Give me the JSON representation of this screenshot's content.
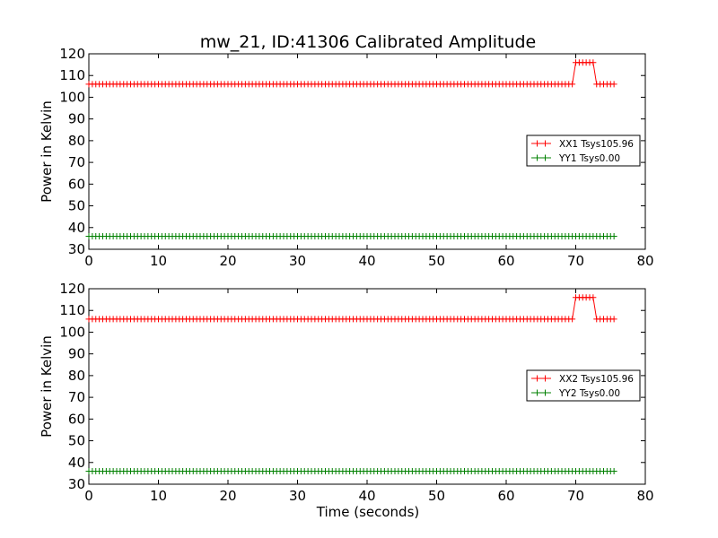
{
  "figure": {
    "title": "mw_21, ID:41306 Calibrated Amplitude",
    "xlabel": "Time (seconds)"
  },
  "chart_data": [
    {
      "type": "line",
      "title": "mw_21, ID:41306 Calibrated Amplitude",
      "xlabel": "",
      "ylabel": "Power in Kelvin",
      "xlim": [
        0,
        80
      ],
      "ylim": [
        30,
        120
      ],
      "xticks": [
        "0",
        "10",
        "20",
        "30",
        "40",
        "50",
        "60",
        "70",
        "80"
      ],
      "yticks": [
        "30",
        "40",
        "50",
        "60",
        "70",
        "80",
        "90",
        "100",
        "110",
        "120"
      ],
      "grid": false,
      "marker": "+",
      "legend_position": "center-right",
      "x_range_samples": {
        "start": 0,
        "end": 75.5,
        "step": 0.5
      },
      "series": [
        {
          "name": "XX1 Tsys105.96",
          "color": "#ff0000",
          "baseline": 106,
          "segments": [
            {
              "x": [
                0,
                69.5
              ],
              "y": 106
            },
            {
              "x": [
                70,
                72.5
              ],
              "y": 116
            },
            {
              "x": [
                73,
                75.5
              ],
              "y": 106
            }
          ]
        },
        {
          "name": "YY1 Tsys0.00",
          "color": "#008000",
          "baseline": 36,
          "segments": [
            {
              "x": [
                0,
                75.5
              ],
              "y": 36
            }
          ]
        }
      ]
    },
    {
      "type": "line",
      "title": "",
      "xlabel": "Time (seconds)",
      "ylabel": "Power in Kelvin",
      "xlim": [
        0,
        80
      ],
      "ylim": [
        30,
        120
      ],
      "xticks": [
        "0",
        "10",
        "20",
        "30",
        "40",
        "50",
        "60",
        "70",
        "80"
      ],
      "yticks": [
        "30",
        "40",
        "50",
        "60",
        "70",
        "80",
        "90",
        "100",
        "110",
        "120"
      ],
      "grid": false,
      "marker": "+",
      "legend_position": "center-right",
      "x_range_samples": {
        "start": 0,
        "end": 75.5,
        "step": 0.5
      },
      "series": [
        {
          "name": "XX2 Tsys105.96",
          "color": "#ff0000",
          "baseline": 106,
          "segments": [
            {
              "x": [
                0,
                69.5
              ],
              "y": 106
            },
            {
              "x": [
                70,
                72.5
              ],
              "y": 116
            },
            {
              "x": [
                73,
                75.5
              ],
              "y": 106
            }
          ]
        },
        {
          "name": "YY2 Tsys0.00",
          "color": "#008000",
          "baseline": 36,
          "segments": [
            {
              "x": [
                0,
                75.5
              ],
              "y": 36
            }
          ]
        }
      ]
    }
  ]
}
